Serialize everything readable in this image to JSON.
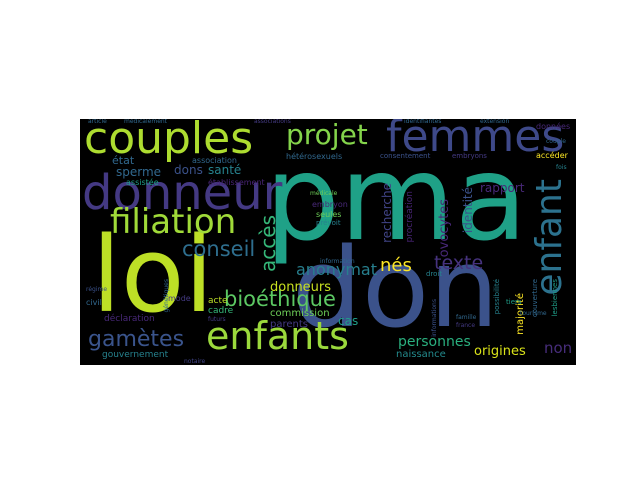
{
  "words": {
    "pma": "pma",
    "don": "don",
    "loi": "loi",
    "couples": "couples",
    "femmes": "femmes",
    "donneur": "donneur",
    "filiation": "filiation",
    "enfants": "enfants",
    "projet": "projet",
    "enfant": "enfant",
    "gametes": "gamètes",
    "bioethique": "bioéthique",
    "conseil": "conseil",
    "acces": "accès",
    "anonymat": "anonymat",
    "nes": "nés",
    "texte": "texte",
    "donneurs": "donneurs",
    "personnes": "personnes",
    "origines": "origines",
    "non": "non",
    "naissance": "naissance",
    "recherche": "recherche",
    "ovocytes": "ovocytes",
    "identite": "identité",
    "procreation": "procréation",
    "dons": "dons",
    "sante": "santé",
    "etat": "état",
    "sperme": "sperme",
    "rapport": "rapport",
    "cas": "cas",
    "commission": "commission",
    "parents": "parents",
    "majorite": "majorité",
    "cadre": "cadre",
    "acte": "acte",
    "declaration": "déclaration",
    "gouvernement": "gouvernement",
    "mode": "mode",
    "association": "association",
    "assistee": "assistée",
    "etablissement": "établissement",
    "heterosexuels": "hétérosexuels",
    "embryon": "embryon",
    "seules": "seules",
    "prevoit": "prévoit",
    "consentement": "consentement",
    "embryons": "embryons",
    "acceder": "accéder",
    "donnees": "données",
    "article": "article",
    "medicalement": "médicalement",
    "associations": "associations",
    "identifiantes": "identifiantes",
    "extension": "extension",
    "possibilite": "possibilité",
    "couverture": "couverture",
    "lesbiennes": "lesbiennes",
    "information": "information",
    "informations": "informations",
    "medicale": "médicale",
    "tiers": "tiers",
    "droit": "droit",
    "famille": "famille",
    "france": "france",
    "civil": "civil",
    "regime": "régime",
    "notaire": "notaire",
    "couple": "couple",
    "fois": "fois",
    "futurs": "futurs",
    "genetiques": "génétiques",
    "tourisme": "tourisme"
  },
  "palette": {
    "pma": "#1fa187",
    "don": "#3b528b",
    "loi": "#bddf26",
    "couples": "#addc30",
    "femmes": "#3e4989",
    "donneur": "#443983",
    "filiation": "#a0da39",
    "enfants": "#9bd93c",
    "projet": "#84d44b",
    "enfant": "#2c728e",
    "gametes": "#3a548c",
    "bioethique": "#5cc863",
    "conseil": "#2e6e8e",
    "acces": "#35b779",
    "anonymat": "#277f8e",
    "nes": "#fde725",
    "texte": "#46327e",
    "donneurs": "#c8e020",
    "personnes": "#2ab07f",
    "origines": "#dae319",
    "non": "#472d7b",
    "naissance": "#238a8d",
    "small_dim": [
      "#482878",
      "#443a83",
      "#3b528b",
      "#31688e",
      "#26828e",
      "#1f9e89",
      "#35b779",
      "#6ece58",
      "#482475",
      "#414487"
    ]
  }
}
